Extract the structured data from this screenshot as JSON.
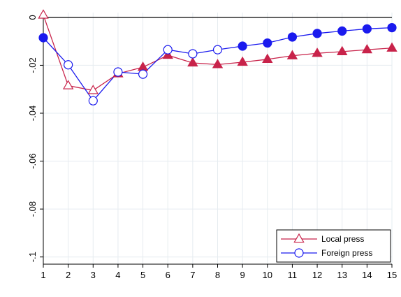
{
  "chart_data": {
    "type": "line",
    "title": "",
    "xlabel": "",
    "ylabel": "",
    "x": [
      1,
      2,
      3,
      4,
      5,
      6,
      7,
      8,
      9,
      10,
      11,
      12,
      13,
      14,
      15
    ],
    "xticks": [
      "1",
      "2",
      "3",
      "4",
      "5",
      "6",
      "7",
      "8",
      "9",
      "10",
      "11",
      "12",
      "13",
      "14",
      "15"
    ],
    "yticks": [
      {
        "value": 0,
        "label": "0"
      },
      {
        "value": -0.02,
        "label": "-.02"
      },
      {
        "value": -0.04,
        "label": "-.04"
      },
      {
        "value": -0.06,
        "label": "-.06"
      },
      {
        "value": -0.08,
        "label": "-.08"
      },
      {
        "value": -0.1,
        "label": "-.1"
      }
    ],
    "xlim": [
      1,
      15
    ],
    "ylim": [
      -0.103,
      0.002
    ],
    "grid": true,
    "legend_position": "bottom-right",
    "zero_line": true,
    "series": [
      {
        "name": "Local press",
        "marker": "triangle",
        "color": "#c8234a",
        "values": [
          0.001,
          -0.0285,
          -0.0305,
          -0.0235,
          -0.0208,
          -0.0158,
          -0.019,
          -0.0197,
          -0.0187,
          -0.0175,
          -0.016,
          -0.015,
          -0.0143,
          -0.0135,
          -0.0128
        ],
        "hollow": [
          true,
          true,
          true,
          false,
          false,
          false,
          false,
          false,
          false,
          false,
          false,
          false,
          false,
          false,
          false
        ]
      },
      {
        "name": "Foreign press",
        "marker": "circle",
        "color": "#1a1aee",
        "values": [
          -0.0085,
          -0.0198,
          -0.0348,
          -0.0228,
          -0.0237,
          -0.0135,
          -0.0152,
          -0.0135,
          -0.012,
          -0.0107,
          -0.0082,
          -0.0067,
          -0.0057,
          -0.0048,
          -0.0043
        ],
        "hollow": [
          false,
          true,
          true,
          true,
          true,
          true,
          true,
          true,
          false,
          false,
          false,
          false,
          false,
          false,
          false
        ]
      }
    ]
  }
}
